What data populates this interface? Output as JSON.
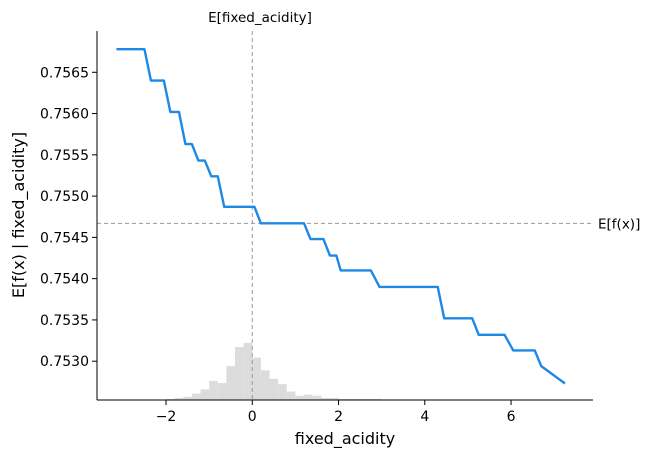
{
  "chart_data": {
    "type": "line",
    "title": "",
    "xlabel": "fixed_acidity",
    "ylabel": "E[f(x) | fixed_acidity]",
    "xlim": [
      -3.6,
      7.9
    ],
    "ylim": [
      0.75253,
      0.757
    ],
    "xticks": [
      -2,
      0,
      2,
      4,
      6
    ],
    "xtick_labels": [
      "−2",
      "0",
      "2",
      "4",
      "6"
    ],
    "yticks": [
      0.753,
      0.7535,
      0.754,
      0.7545,
      0.755,
      0.7555,
      0.756,
      0.7565
    ],
    "ytick_labels": [
      "0.7530",
      "0.7535",
      "0.7540",
      "0.7545",
      "0.7550",
      "0.7555",
      "0.7560",
      "0.7565"
    ],
    "grid": false,
    "line_color": "#1e88e5",
    "reference_color": "#999999",
    "histogram_color": "#dcdcdc",
    "series": [
      {
        "x": [
          -3.15,
          -2.5,
          -2.35,
          -2.05,
          -1.9,
          -1.7,
          -1.55,
          -1.4,
          -1.25,
          -1.1,
          -0.95,
          -0.8,
          -0.65,
          0.05,
          0.2,
          1.2,
          1.35,
          1.65,
          1.8,
          1.95,
          2.05,
          2.75,
          2.95,
          4.3,
          4.45,
          5.1,
          5.25,
          5.85,
          6.05,
          6.55,
          6.7,
          7.25
        ],
        "y": [
          0.75678,
          0.75678,
          0.7564,
          0.7564,
          0.75602,
          0.75602,
          0.75563,
          0.75563,
          0.75543,
          0.75543,
          0.75524,
          0.75524,
          0.75487,
          0.75487,
          0.75467,
          0.75467,
          0.75448,
          0.75448,
          0.75428,
          0.75428,
          0.7541,
          0.7541,
          0.7539,
          0.7539,
          0.75352,
          0.75352,
          0.75332,
          0.75332,
          0.75313,
          0.75313,
          0.75294,
          0.75273
        ]
      }
    ],
    "reference_lines": {
      "vertical": {
        "x": 0.0,
        "label": "E[fixed_acidity]"
      },
      "horizontal": {
        "y": 0.75467,
        "label": "E[f(x)]"
      }
    },
    "histogram": {
      "bin_starts": [
        -2.0,
        -1.8,
        -1.6,
        -1.4,
        -1.2,
        -1.0,
        -0.8,
        -0.6,
        -0.4,
        -0.2,
        0.0,
        0.2,
        0.4,
        0.6,
        0.8,
        1.0,
        1.2,
        1.4,
        1.6,
        1.8,
        2.0,
        2.2,
        2.4,
        2.6,
        2.8
      ],
      "bin_width": 0.2,
      "heights": [
        0.01,
        0.02,
        0.03,
        0.06,
        0.1,
        0.18,
        0.16,
        0.32,
        0.5,
        0.54,
        0.4,
        0.28,
        0.2,
        0.15,
        0.08,
        0.04,
        0.05,
        0.04,
        0.02,
        0.02,
        0.01,
        0.01,
        0.01,
        0.01,
        0.01
      ]
    }
  }
}
